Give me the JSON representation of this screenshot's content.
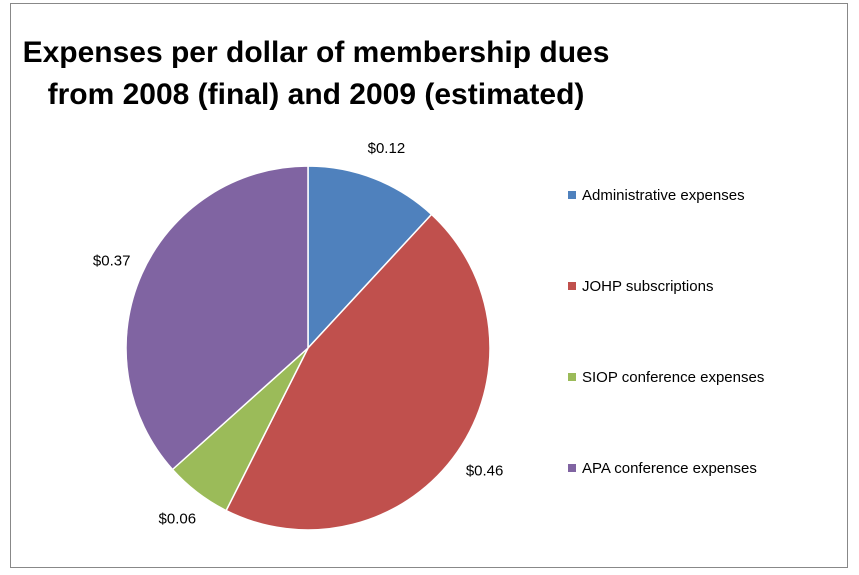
{
  "chart_data": {
    "type": "pie",
    "title_lines": [
      "Expenses per dollar of membership dues",
      "from 2008 (final) and 2009 (estimated)"
    ],
    "slices": [
      {
        "name": "Administrative expenses",
        "value": 0.12,
        "label": "$0.12",
        "color": "#4F81BD"
      },
      {
        "name": "JOHP subscriptions",
        "value": 0.46,
        "label": "$0.46",
        "color": "#C0504D"
      },
      {
        "name": "SIOP conference expenses",
        "value": 0.06,
        "label": "$0.06",
        "color": "#9BBB59"
      },
      {
        "name": "APA conference expenses",
        "value": 0.37,
        "label": "$0.37",
        "color": "#8064A2"
      }
    ],
    "legend_position": "right",
    "start_angle": "12 o'clock",
    "direction": "clockwise"
  }
}
